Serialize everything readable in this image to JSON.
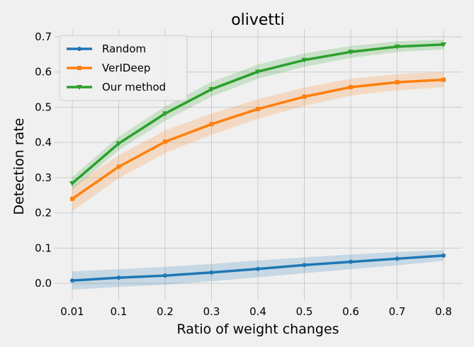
{
  "chart_data": {
    "type": "line",
    "title": "olivetti",
    "xlabel": "Ratio of weight changes",
    "ylabel": "Detection rate",
    "categories": [
      "0.01",
      "0.1",
      "0.2",
      "0.3",
      "0.4",
      "0.5",
      "0.6",
      "0.7",
      "0.8"
    ],
    "yticks": [
      "0.0",
      "0.1",
      "0.2",
      "0.3",
      "0.4",
      "0.5",
      "0.6",
      "0.7"
    ],
    "ylim": [
      -0.05,
      0.72
    ],
    "grid": true,
    "legend_position": "upper-left",
    "series": [
      {
        "name": "Random",
        "color": "#1f77b4",
        "marker": "circle",
        "values": [
          0.008,
          0.016,
          0.022,
          0.031,
          0.041,
          0.052,
          0.061,
          0.07,
          0.079
        ],
        "lower": [
          -0.018,
          -0.01,
          -0.004,
          0.006,
          0.017,
          0.029,
          0.04,
          0.051,
          0.064
        ],
        "upper": [
          0.034,
          0.04,
          0.047,
          0.055,
          0.065,
          0.074,
          0.082,
          0.089,
          0.094
        ]
      },
      {
        "name": "VerIDeep",
        "color": "#ff7f0e",
        "marker": "square",
        "values": [
          0.24,
          0.331,
          0.402,
          0.452,
          0.495,
          0.53,
          0.557,
          0.571,
          0.578
        ],
        "lower": [
          0.205,
          0.298,
          0.37,
          0.422,
          0.467,
          0.504,
          0.533,
          0.548,
          0.557
        ],
        "upper": [
          0.275,
          0.364,
          0.434,
          0.482,
          0.523,
          0.556,
          0.581,
          0.594,
          0.6
        ]
      },
      {
        "name": "Our method",
        "color": "#2ca02c",
        "marker": "triangle-down",
        "values": [
          0.284,
          0.397,
          0.482,
          0.551,
          0.601,
          0.634,
          0.657,
          0.672,
          0.678
        ],
        "lower": [
          0.266,
          0.378,
          0.462,
          0.53,
          0.581,
          0.615,
          0.64,
          0.657,
          0.664
        ],
        "upper": [
          0.302,
          0.416,
          0.502,
          0.572,
          0.621,
          0.653,
          0.674,
          0.687,
          0.692
        ]
      }
    ]
  }
}
